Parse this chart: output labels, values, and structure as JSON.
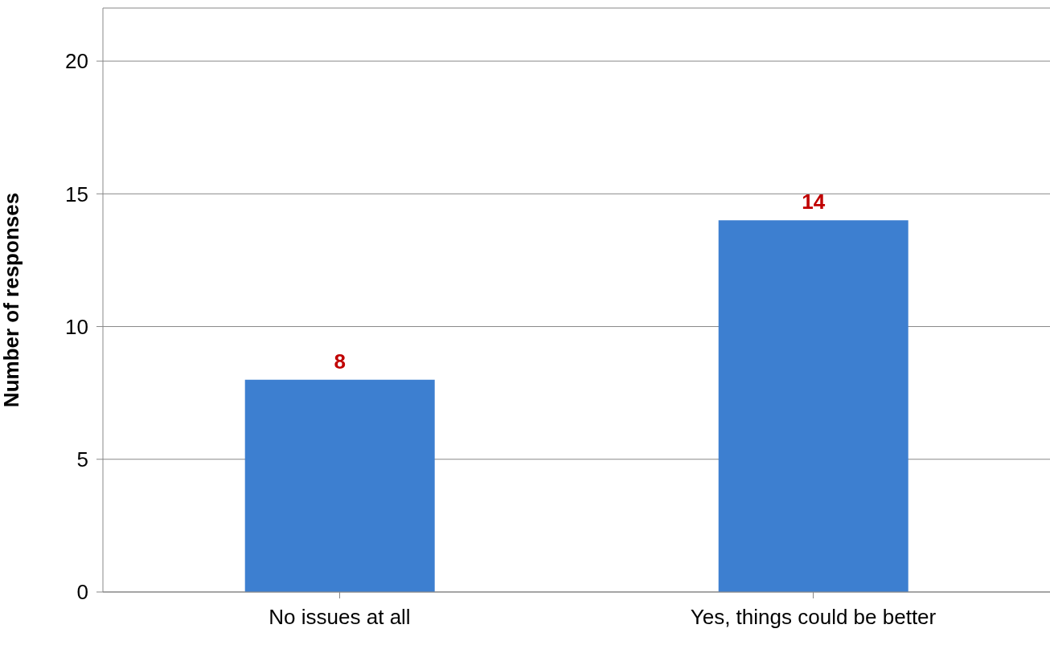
{
  "chart_data": {
    "type": "bar",
    "ylabel": "Number of responses",
    "categories": [
      "No issues at all",
      "Yes, things could be better"
    ],
    "values": [
      8,
      14
    ],
    "color": "#3d7fd0",
    "ylim": [
      0,
      22
    ],
    "yticks": [
      0,
      5,
      10,
      15,
      20
    ],
    "grid": "y",
    "data_labels": true
  }
}
